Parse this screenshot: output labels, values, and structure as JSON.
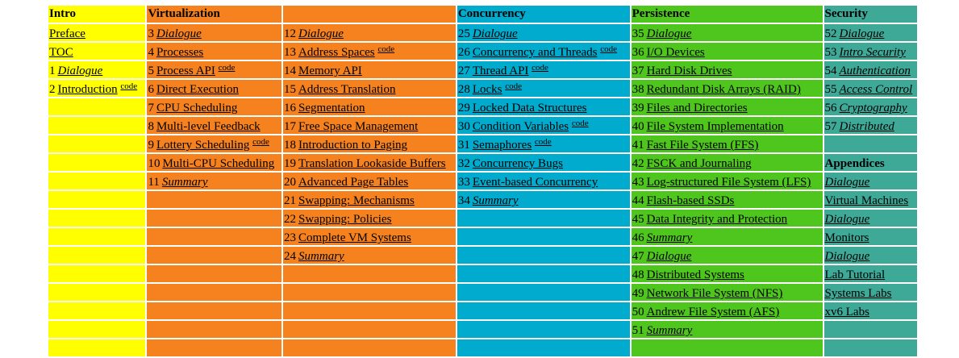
{
  "headers": [
    "Intro",
    "Virtualization",
    "",
    "Concurrency",
    "Persistence",
    "Security"
  ],
  "code_label": "code",
  "columns": [
    {
      "cls": "c-intro",
      "items": [
        {
          "num": "",
          "title": "Preface"
        },
        {
          "num": "",
          "title": "TOC"
        },
        {
          "num": "1",
          "title": "Dialogue",
          "italic": true
        },
        {
          "num": "2",
          "title": "Introduction",
          "code": true
        }
      ]
    },
    {
      "cls": "c-virt",
      "items": [
        {
          "num": "3",
          "title": "Dialogue",
          "italic": true
        },
        {
          "num": "4",
          "title": "Processes"
        },
        {
          "num": "5",
          "title": "Process API",
          "code": true
        },
        {
          "num": "6",
          "title": "Direct Execution"
        },
        {
          "num": "7",
          "title": "CPU Scheduling"
        },
        {
          "num": "8",
          "title": "Multi-level Feedback"
        },
        {
          "num": "9",
          "title": "Lottery Scheduling",
          "code": true
        },
        {
          "num": "10",
          "title": "Multi-CPU Scheduling"
        },
        {
          "num": "11",
          "title": "Summary",
          "italic": true
        }
      ]
    },
    {
      "cls": "c-virt",
      "items": [
        {
          "num": "12",
          "title": "Dialogue",
          "italic": true
        },
        {
          "num": "13",
          "title": "Address Spaces",
          "code": true
        },
        {
          "num": "14",
          "title": "Memory API"
        },
        {
          "num": "15",
          "title": "Address Translation"
        },
        {
          "num": "16",
          "title": "Segmentation"
        },
        {
          "num": "17",
          "title": "Free Space Management"
        },
        {
          "num": "18",
          "title": "Introduction to Paging"
        },
        {
          "num": "19",
          "title": "Translation Lookaside Buffers"
        },
        {
          "num": "20",
          "title": "Advanced Page Tables"
        },
        {
          "num": "21",
          "title": "Swapping: Mechanisms"
        },
        {
          "num": "22",
          "title": "Swapping: Policies"
        },
        {
          "num": "23",
          "title": "Complete VM Systems"
        },
        {
          "num": "24",
          "title": "Summary",
          "italic": true
        }
      ]
    },
    {
      "cls": "c-conc",
      "items": [
        {
          "num": "25",
          "title": "Dialogue",
          "italic": true
        },
        {
          "num": "26",
          "title": "Concurrency and Threads",
          "code": true
        },
        {
          "num": "27",
          "title": "Thread API",
          "code": true
        },
        {
          "num": "28",
          "title": "Locks",
          "code": true
        },
        {
          "num": "29",
          "title": "Locked Data Structures"
        },
        {
          "num": "30",
          "title": "Condition Variables",
          "code": true
        },
        {
          "num": "31",
          "title": "Semaphores",
          "code": true
        },
        {
          "num": "32",
          "title": "Concurrency Bugs"
        },
        {
          "num": "33",
          "title": "Event-based Concurrency"
        },
        {
          "num": "34",
          "title": "Summary",
          "italic": true
        }
      ]
    },
    {
      "cls": "c-pers",
      "items": [
        {
          "num": "35",
          "title": "Dialogue",
          "italic": true
        },
        {
          "num": "36",
          "title": "I/O Devices"
        },
        {
          "num": "37",
          "title": "Hard Disk Drives"
        },
        {
          "num": "38",
          "title": "Redundant Disk Arrays (RAID)"
        },
        {
          "num": "39",
          "title": "Files and Directories"
        },
        {
          "num": "40",
          "title": "File System Implementation"
        },
        {
          "num": "41",
          "title": "Fast File System (FFS)"
        },
        {
          "num": "42",
          "title": "FSCK and Journaling"
        },
        {
          "num": "43",
          "title": "Log-structured File System (LFS)"
        },
        {
          "num": "44",
          "title": "Flash-based SSDs"
        },
        {
          "num": "45",
          "title": "Data Integrity and Protection"
        },
        {
          "num": "46",
          "title": "Summary",
          "italic": true
        },
        {
          "num": "47",
          "title": "Dialogue",
          "italic": true
        },
        {
          "num": "48",
          "title": "Distributed Systems"
        },
        {
          "num": "49",
          "title": "Network File System (NFS)"
        },
        {
          "num": "50",
          "title": "Andrew File System (AFS)"
        },
        {
          "num": "51",
          "title": "Summary",
          "italic": true
        }
      ]
    },
    {
      "cls": "c-sec",
      "items": [
        {
          "num": "52",
          "title": "Dialogue",
          "italic": true
        },
        {
          "num": "53",
          "title": "Intro Security",
          "italic": true
        },
        {
          "num": "54",
          "title": "Authentication",
          "italic": true
        },
        {
          "num": "55",
          "title": "Access Control",
          "italic": true
        },
        {
          "num": "56",
          "title": "Cryptography",
          "italic": true
        },
        {
          "num": "57",
          "title": "Distributed",
          "italic": true
        },
        {
          "blank": true
        },
        {
          "heading": "Appendices"
        },
        {
          "num": "",
          "title": "Dialogue",
          "italic": true
        },
        {
          "num": "",
          "title": "Virtual Machines"
        },
        {
          "num": "",
          "title": "Dialogue",
          "italic": true
        },
        {
          "num": "",
          "title": "Monitors"
        },
        {
          "num": "",
          "title": "Dialogue",
          "italic": true
        },
        {
          "num": "",
          "title": "Lab Tutorial"
        },
        {
          "num": "",
          "title": "Systems Labs"
        },
        {
          "num": "",
          "title": "xv6 Labs"
        }
      ]
    }
  ]
}
